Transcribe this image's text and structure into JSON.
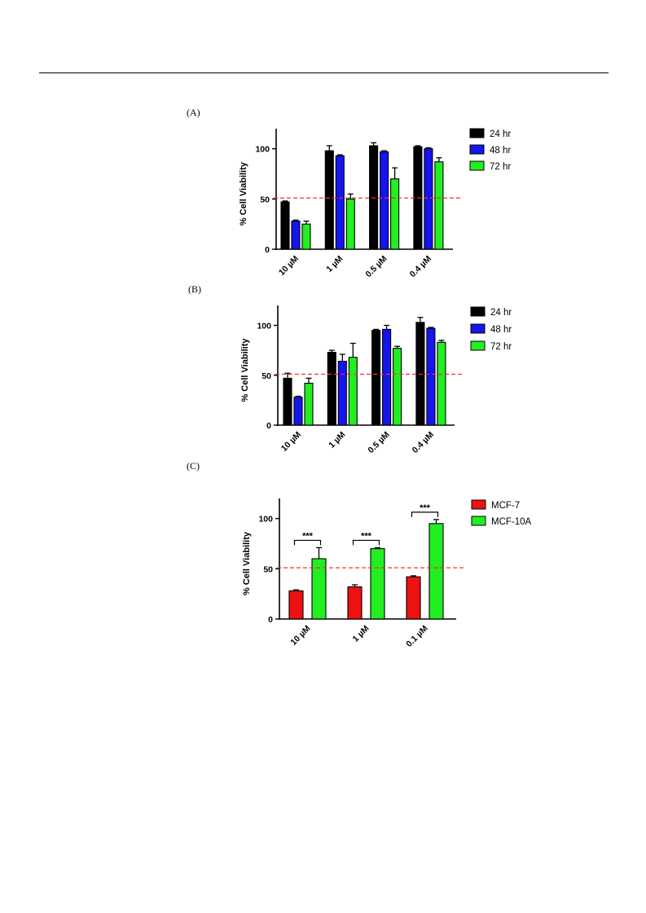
{
  "panels": [
    {
      "label": "(A)",
      "chart_data": {
        "type": "bar",
        "title": "",
        "xlabel": "",
        "ylabel": "% Cell Viability",
        "ylim": [
          0,
          120
        ],
        "yticks": [
          0,
          50,
          100
        ],
        "categories": [
          "10 µM",
          "1 µM",
          "0.5 µM",
          "0.4 µM"
        ],
        "threshold": 51,
        "grid": false,
        "legend_position": "right",
        "series": [
          {
            "name": "24 hr",
            "color": "#000000",
            "values": [
              47,
              98,
              103,
              102
            ],
            "errors": [
              1,
              5,
              3,
              1
            ]
          },
          {
            "name": "48 hr",
            "color": "#1515ee",
            "values": [
              28,
              93,
              97,
              100
            ],
            "errors": [
              1,
              1,
              1,
              1
            ]
          },
          {
            "name": "72 hr",
            "color": "#22ee22",
            "values": [
              25,
              50,
              70,
              87
            ],
            "errors": [
              3,
              5,
              11,
              4
            ]
          }
        ],
        "significance": []
      }
    },
    {
      "label": "(B)",
      "chart_data": {
        "type": "bar",
        "title": "",
        "xlabel": "",
        "ylabel": "% Cell Viability",
        "ylim": [
          0,
          120
        ],
        "yticks": [
          0,
          50,
          100
        ],
        "categories": [
          "10 µM",
          "1 µM",
          "0.5 µM",
          "0.4 µM"
        ],
        "threshold": 51,
        "grid": false,
        "legend_position": "right",
        "series": [
          {
            "name": "24 hr",
            "color": "#000000",
            "values": [
              47,
              73,
              95,
              103
            ],
            "errors": [
              5,
              2,
              1,
              5
            ]
          },
          {
            "name": "48 hr",
            "color": "#1515ee",
            "values": [
              28,
              64,
              96,
              97
            ],
            "errors": [
              1,
              7,
              4,
              1
            ]
          },
          {
            "name": "72 hr",
            "color": "#22ee22",
            "values": [
              42,
              68,
              77,
              83
            ],
            "errors": [
              5,
              14,
              2,
              2
            ]
          }
        ],
        "significance": []
      }
    },
    {
      "label": "(C)",
      "chart_data": {
        "type": "bar",
        "title": "",
        "xlabel": "",
        "ylabel": "% Cell Viability",
        "ylim": [
          0,
          120
        ],
        "yticks": [
          0,
          50,
          100
        ],
        "categories": [
          "10 µM",
          "1 µM",
          "0.1 µM"
        ],
        "threshold": 51,
        "grid": false,
        "legend_position": "right",
        "series": [
          {
            "name": "MCF-7",
            "color": "#ee1111",
            "values": [
              28,
              32,
              42
            ],
            "errors": [
              1,
              2,
              1
            ]
          },
          {
            "name": "MCF-10A",
            "color": "#22ee22",
            "values": [
              60,
              70,
              95
            ],
            "errors": [
              11,
              1,
              4
            ]
          }
        ],
        "significance": [
          {
            "category": "10 µM",
            "label": "***"
          },
          {
            "category": "1 µM",
            "label": "***"
          },
          {
            "category": "0.1 µM",
            "label": "***"
          }
        ]
      }
    }
  ]
}
